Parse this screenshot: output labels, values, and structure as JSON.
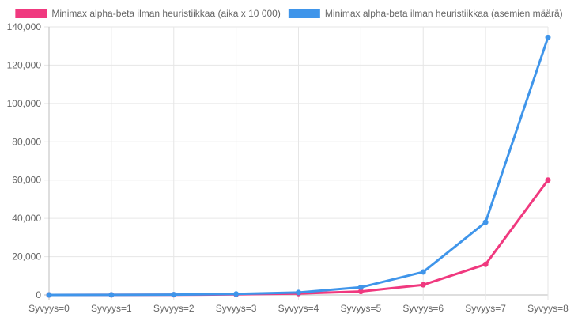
{
  "chart_data": {
    "type": "line",
    "categories": [
      "Syvyys=0",
      "Syvyys=1",
      "Syvyys=2",
      "Syvyys=3",
      "Syvyys=4",
      "Syvyys=5",
      "Syvyys=6",
      "Syvyys=7",
      "Syvyys=8"
    ],
    "series": [
      {
        "name": "Minimax alpha-beta ilman heuristiikkaa (aika x 10 000)",
        "color": "#f0397f",
        "values": [
          0,
          50,
          100,
          300,
          700,
          1800,
          5300,
          16000,
          60000
        ]
      },
      {
        "name": "Minimax alpha-beta ilman heuristiikkaa (asemien määrä)",
        "color": "#3f95ea",
        "values": [
          0,
          30,
          150,
          500,
          1300,
          4000,
          12000,
          38000,
          134500
        ]
      }
    ],
    "title": "",
    "xlabel": "",
    "ylabel": "",
    "ylim": [
      0,
      140000
    ],
    "yticks": [
      "0",
      "20,000",
      "40,000",
      "60,000",
      "80,000",
      "100,000",
      "120,000",
      "140,000"
    ],
    "grid": true,
    "legend": "top"
  }
}
